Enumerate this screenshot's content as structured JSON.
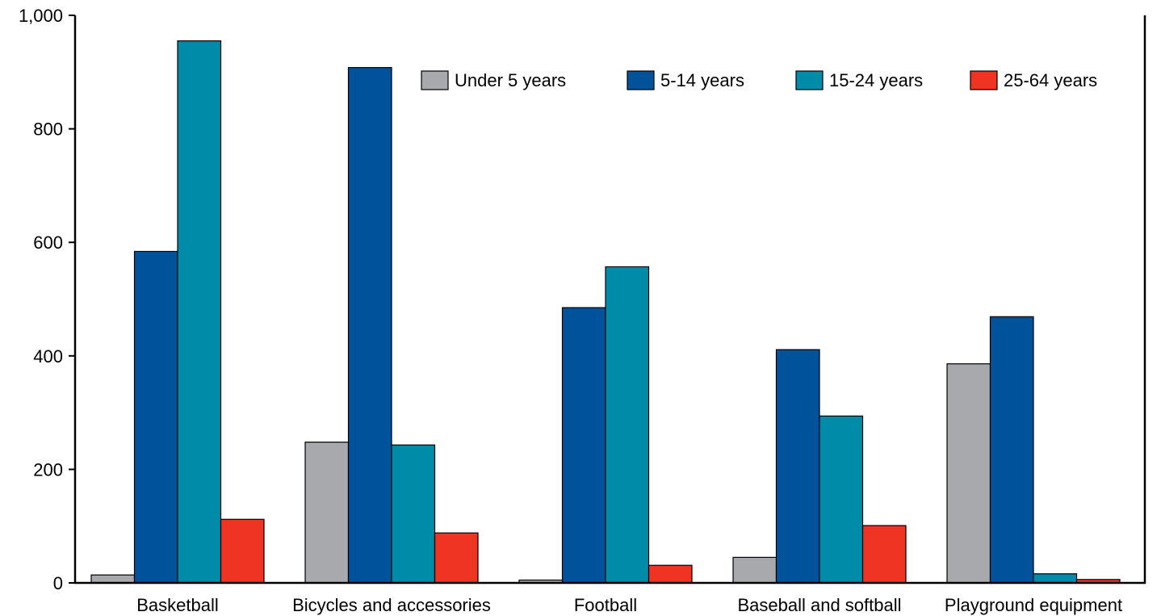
{
  "chart_data": {
    "type": "bar",
    "title": "",
    "xlabel": "",
    "ylabel": "",
    "ylim": [
      0,
      1000
    ],
    "yticks": [
      0,
      200,
      400,
      600,
      800,
      1000
    ],
    "ytick_labels": [
      "0",
      "200",
      "400",
      "600",
      "800",
      "1,000"
    ],
    "grid": false,
    "legend_position": "top-right",
    "categories": [
      "Basketball",
      "Bicycles and accessories",
      "Football",
      "Baseball and softball",
      "Playground equipment"
    ],
    "series": [
      {
        "name": "Under 5 years",
        "color": "#a7a9ac",
        "values": [
          14,
          248,
          5,
          45,
          386
        ]
      },
      {
        "name": "5-14 years",
        "color": "#00529b",
        "values": [
          584,
          908,
          485,
          411,
          469
        ]
      },
      {
        "name": "15-24 years",
        "color": "#008ca8",
        "values": [
          955,
          243,
          557,
          294,
          16
        ]
      },
      {
        "name": "25-64 years",
        "color": "#ef3424",
        "values": [
          112,
          88,
          31,
          101,
          6
        ]
      }
    ]
  }
}
